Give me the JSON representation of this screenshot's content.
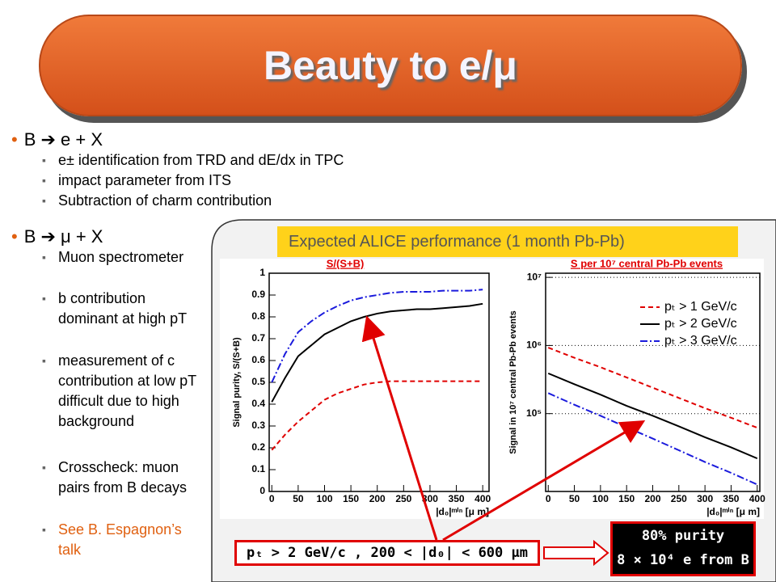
{
  "title": "Beauty to e/μ",
  "bullets": [
    {
      "text": "B ➔ e + X",
      "items": [
        "e± identification from TRD and dE/dx in TPC",
        "impact parameter from ITS",
        "Subtraction of charm contribution"
      ]
    },
    {
      "text": "B ➔ μ + X",
      "items": [
        "Muon spectrometer",
        "b contribution dominant at high pT",
        "measurement of c contribution at low pT difficult due to high background",
        "Crosscheck: muon pairs from B decays",
        "See B. Espagnon’s talk"
      ]
    }
  ],
  "panel_label": "Expected ALICE performance (1 month Pb-Pb)",
  "chart_data": [
    {
      "type": "line",
      "title": "S/(S+B)",
      "title_color": "#e00000",
      "x_label": "|d₀|ᵐⁱⁿ [μ m]",
      "y_label": "Signal purity, S/(S+B)",
      "x": [
        0,
        25,
        50,
        75,
        100,
        125,
        150,
        175,
        200,
        225,
        250,
        275,
        300,
        325,
        350,
        375,
        400
      ],
      "series": [
        {
          "color": "#e00000",
          "style": "dashed",
          "values": [
            0.19,
            0.26,
            0.32,
            0.37,
            0.42,
            0.45,
            0.47,
            0.49,
            0.5,
            0.505,
            0.505,
            0.505,
            0.505,
            0.505,
            0.505,
            0.505,
            0.505
          ]
        },
        {
          "color": "#000000",
          "style": "solid",
          "values": [
            0.41,
            0.52,
            0.62,
            0.67,
            0.72,
            0.75,
            0.78,
            0.8,
            0.815,
            0.825,
            0.83,
            0.835,
            0.835,
            0.84,
            0.845,
            0.85,
            0.86
          ]
        },
        {
          "color": "#1a1adc",
          "style": "dashdot",
          "values": [
            0.5,
            0.63,
            0.73,
            0.78,
            0.82,
            0.85,
            0.875,
            0.89,
            0.9,
            0.91,
            0.915,
            0.915,
            0.915,
            0.92,
            0.92,
            0.92,
            0.925
          ]
        }
      ],
      "xlim": [
        -5,
        412
      ],
      "ylim": [
        0,
        1
      ],
      "xticks": [
        0,
        50,
        100,
        150,
        200,
        250,
        300,
        350,
        400
      ],
      "yticks": [
        0,
        0.1,
        0.2,
        0.3,
        0.4,
        0.5,
        0.6,
        0.7,
        0.8,
        0.9,
        1
      ],
      "grid": false,
      "log_y": false
    },
    {
      "type": "line",
      "title": "S per 10⁷ central Pb-Pb events",
      "title_color": "#e00000",
      "x_label": "|d₀|ᵐⁱⁿ [μ m]",
      "y_label": "Signal in 10⁷ central Pb-Pb events",
      "x": [
        0,
        50,
        100,
        150,
        200,
        250,
        300,
        350,
        400
      ],
      "series": [
        {
          "name": "pₜ > 1 GeV/c",
          "color": "#e00000",
          "style": "dashed",
          "values": [
            930000,
            660000,
            480000,
            340000,
            240000,
            170000,
            120000,
            87000,
            62000
          ]
        },
        {
          "name": "pₜ > 2 GeV/c",
          "color": "#000000",
          "style": "solid",
          "values": [
            390000,
            270000,
            190000,
            130000,
            93000,
            65000,
            45000,
            32000,
            22000
          ]
        },
        {
          "name": "pₜ > 3 GeV/c",
          "color": "#1a1adc",
          "style": "dashdot",
          "values": [
            200000,
            135000,
            93000,
            63000,
            43000,
            29000,
            19500,
            13500,
            9100
          ]
        }
      ],
      "xlim": [
        -5,
        405
      ],
      "ylim": [
        7200,
        11500000
      ],
      "xticks": [
        0,
        50,
        100,
        150,
        200,
        250,
        300,
        350,
        400
      ],
      "yticks": [
        {
          "value": 100000,
          "label": "10⁵"
        },
        {
          "value": 1000000,
          "label": "10⁶"
        },
        {
          "value": 10000000,
          "label": "10⁷"
        }
      ],
      "grid": true,
      "log_y": true,
      "legend": "upper right"
    }
  ],
  "cut_box": "pₜ > 2 GeV/c , 200 < |d₀| < 600 μm",
  "result": [
    "80% purity",
    "8 × 10⁴ e from B"
  ]
}
